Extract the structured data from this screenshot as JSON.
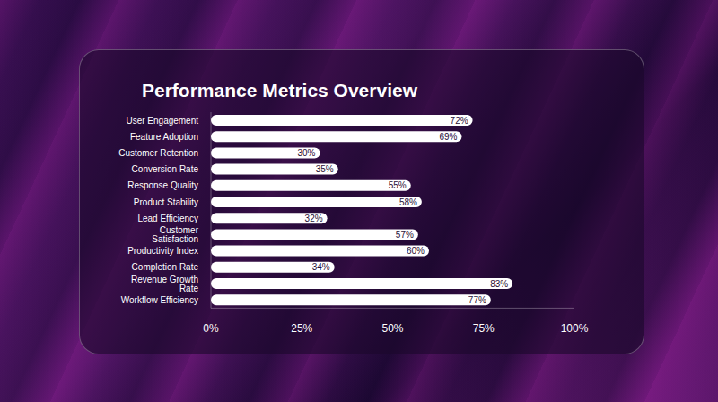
{
  "chart_data": {
    "type": "bar",
    "title": "Performance Metrics Overview",
    "orientation": "horizontal",
    "categories": [
      "User Engagement",
      "Feature Adoption",
      "Customer Retention",
      "Conversion Rate",
      "Response Quality",
      "Product Stability",
      "Lead Efficiency",
      "Customer Satisfaction",
      "Productivity Index",
      "Completion Rate",
      "Revenue Growth Rate",
      "Workflow Efficiency"
    ],
    "values": [
      72,
      69,
      30,
      35,
      55,
      58,
      32,
      57,
      60,
      34,
      83,
      77
    ],
    "value_labels": [
      "72%",
      "69%",
      "30%",
      "35%",
      "55%",
      "58%",
      "32%",
      "57%",
      "60%",
      "34%",
      "83%",
      "77%"
    ],
    "color": "#ffffff",
    "xlim": [
      0,
      100
    ],
    "xticks": [
      {
        "value": 0,
        "label": "0%"
      },
      {
        "value": 25,
        "label": "25%"
      },
      {
        "value": 50,
        "label": "50%"
      },
      {
        "value": 75,
        "label": "75%"
      },
      {
        "value": 100,
        "label": "100%"
      }
    ],
    "grid": false,
    "data_labels": true
  }
}
